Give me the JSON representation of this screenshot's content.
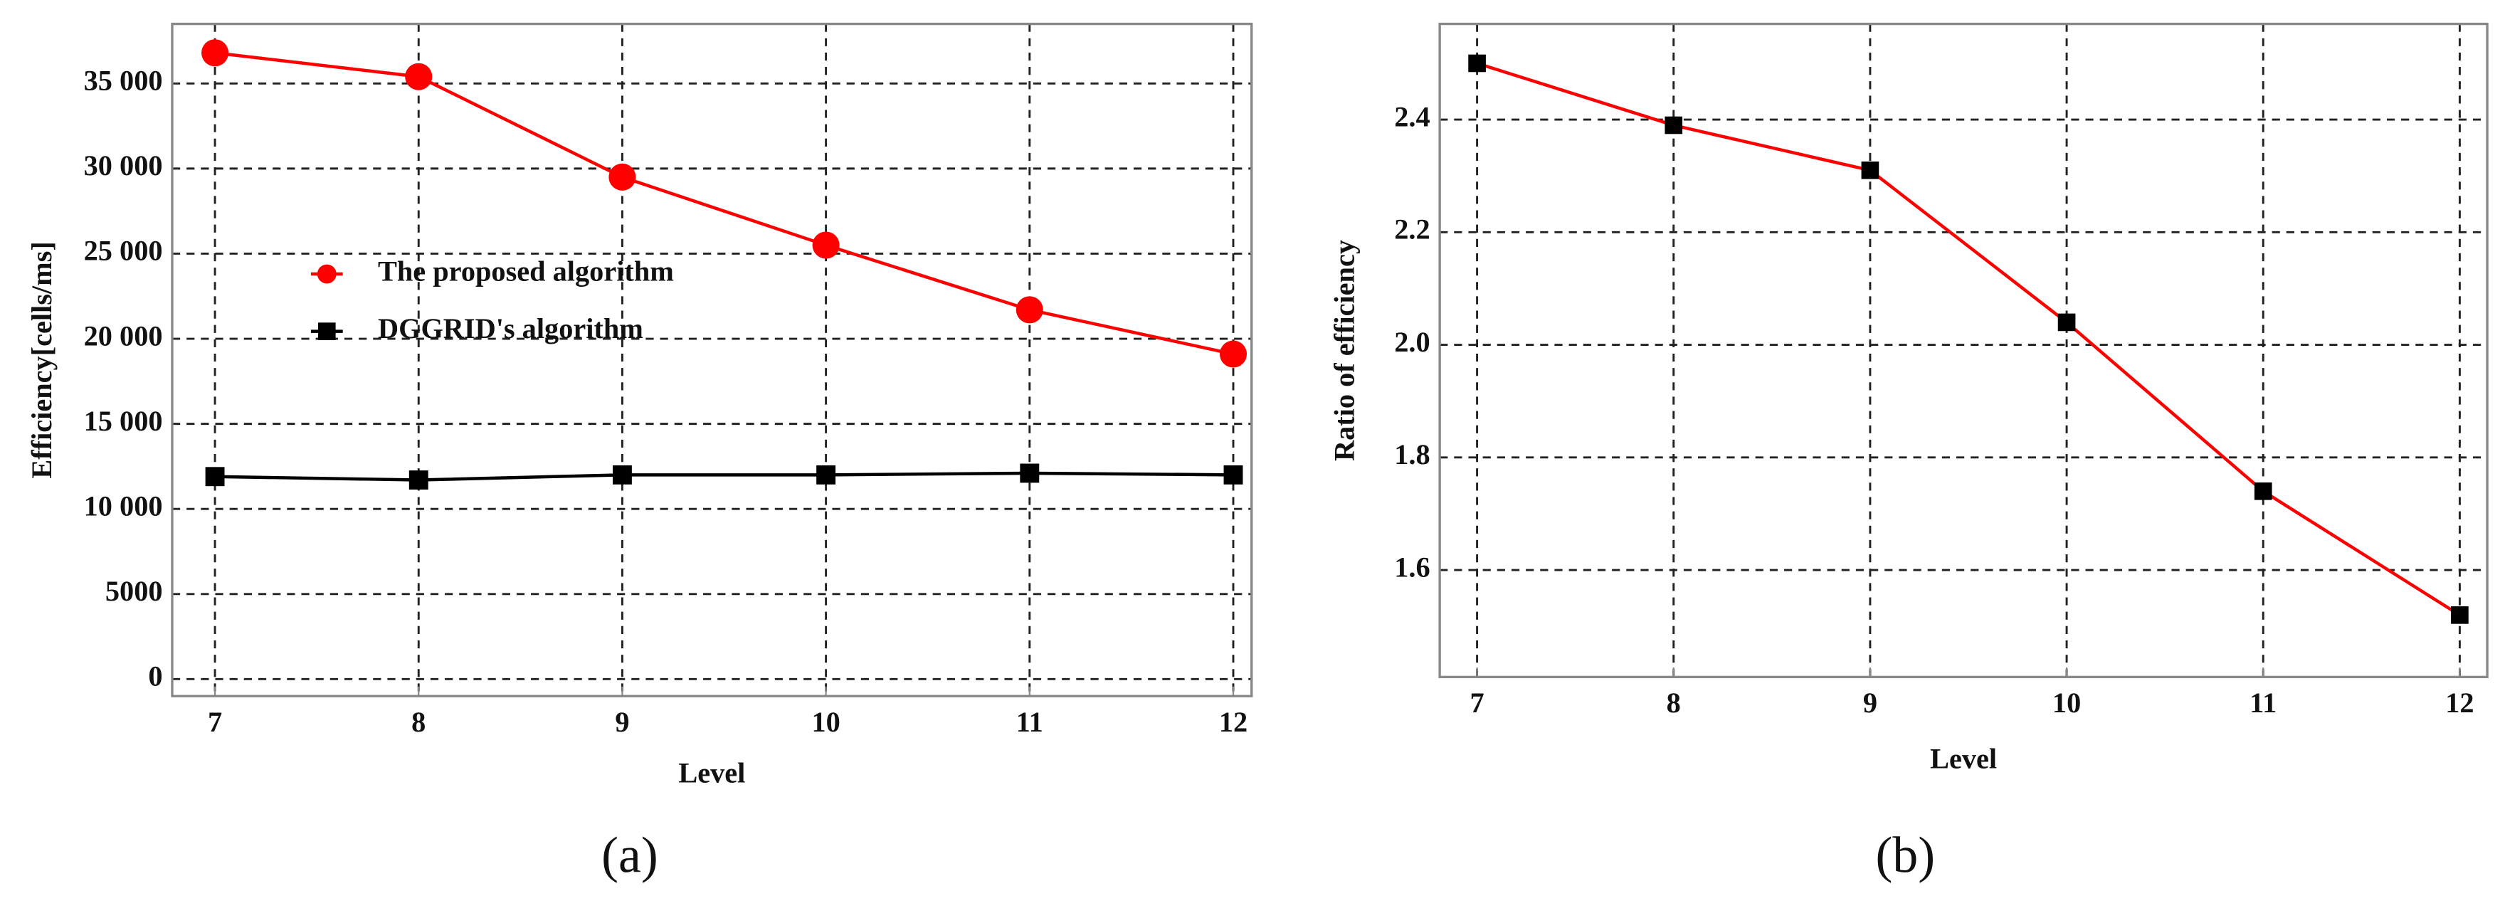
{
  "chart_data": [
    {
      "type": "line",
      "label": "(a)",
      "xlabel": "Level",
      "ylabel": "Efficiency[cells/ms]",
      "x": [
        7,
        8,
        9,
        10,
        11,
        12
      ],
      "xlim": [
        6.79,
        12.09
      ],
      "xticks": [
        7,
        8,
        9,
        10,
        11,
        12
      ],
      "ylim": [
        -1000,
        38500
      ],
      "yticks": [
        0,
        5000,
        {
          "value": 10000,
          "label": "10 000"
        },
        {
          "value": 15000,
          "label": "15 000"
        },
        {
          "value": 20000,
          "label": "20 000"
        },
        {
          "value": 25000,
          "label": "25 000"
        },
        {
          "value": 30000,
          "label": "30 000"
        },
        {
          "value": 35000,
          "label": "35 000"
        }
      ],
      "grid": true,
      "series": [
        {
          "name": "The proposed algorithm",
          "color": "#ff0000",
          "marker": "circle",
          "marker_color": "#ff0000",
          "values": [
            36800,
            35400,
            29500,
            25500,
            21700,
            19100
          ]
        },
        {
          "name": "DGGRID's algorithm",
          "color": "#000000",
          "marker": "square",
          "marker_color": "#000000",
          "values": [
            11900,
            11700,
            12000,
            12000,
            12100,
            12000
          ]
        }
      ]
    },
    {
      "type": "line",
      "label": "(b)",
      "xlabel": "Level",
      "ylabel": "Ratio  of  efficiency",
      "x": [
        7,
        8,
        9,
        10,
        11,
        12
      ],
      "xlim": [
        6.81,
        12.14
      ],
      "xticks": [
        7,
        8,
        9,
        10,
        11,
        12
      ],
      "ylim": [
        1.41,
        2.57
      ],
      "yticks": [
        1.6,
        1.8,
        {
          "value": 2,
          "label": "2.0"
        },
        2.2,
        2.4
      ],
      "grid": true,
      "series": [
        {
          "color": "#ff0000",
          "marker": "square",
          "marker_color": "#000000",
          "values": [
            2.5,
            2.39,
            2.31,
            2.04,
            1.74,
            1.52
          ]
        }
      ]
    }
  ]
}
